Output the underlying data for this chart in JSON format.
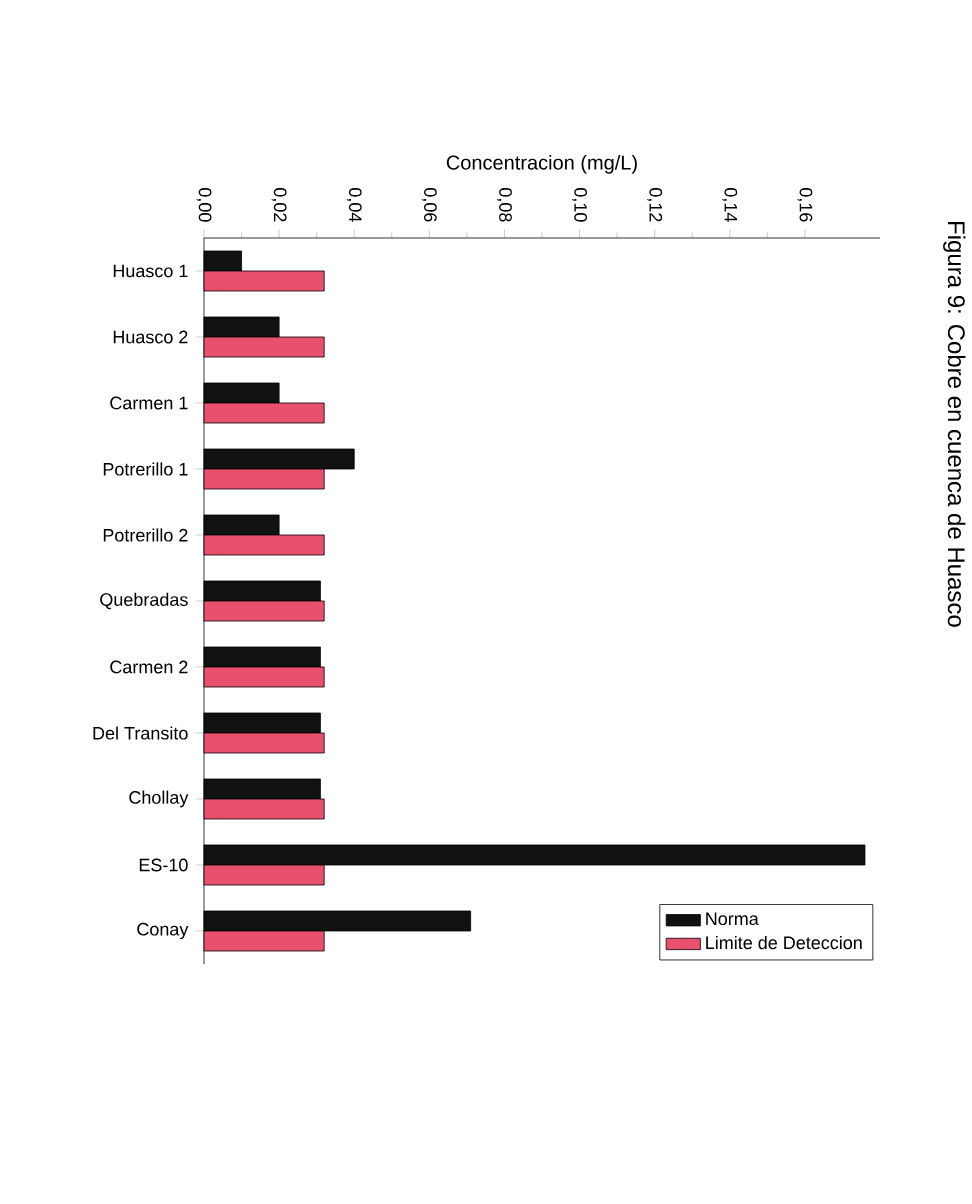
{
  "chart_data": {
    "type": "bar",
    "orientation": "horizontal",
    "title": "Figura 9: Cobre en cuenca de Huasco",
    "xlabel": "Concentracion (mg/L)",
    "categories": [
      "Huasco 1",
      "Huasco 2",
      "Carmen 1",
      "Potrerillo 1",
      "Potrerillo 2",
      "Quebradas",
      "Carmen 2",
      "Del Transito",
      "Chollay",
      "ES-10",
      "Conay"
    ],
    "series": [
      {
        "name": "Norma",
        "color": "#111111",
        "values": [
          0.01,
          0.02,
          0.02,
          0.04,
          0.02,
          0.031,
          0.031,
          0.031,
          0.031,
          0.176,
          0.071
        ]
      },
      {
        "name": "Limite de Deteccion",
        "color": "#e8506e",
        "values": [
          0.032,
          0.032,
          0.032,
          0.032,
          0.032,
          0.032,
          0.032,
          0.032,
          0.032,
          0.032,
          0.032
        ]
      }
    ],
    "xlim": [
      0,
      0.18
    ],
    "xticks": [
      {
        "value": 0,
        "label": "0,00"
      },
      {
        "value": 0.02,
        "label": "0,02"
      },
      {
        "value": 0.04,
        "label": "0,04"
      },
      {
        "value": 0.06,
        "label": "0,06"
      },
      {
        "value": 0.08,
        "label": "0,08"
      },
      {
        "value": 0.1,
        "label": "0,10"
      },
      {
        "value": 0.12,
        "label": "0,12"
      },
      {
        "value": 0.14,
        "label": "0,14"
      },
      {
        "value": 0.16,
        "label": "0,16"
      }
    ],
    "legend": "bottom right"
  }
}
